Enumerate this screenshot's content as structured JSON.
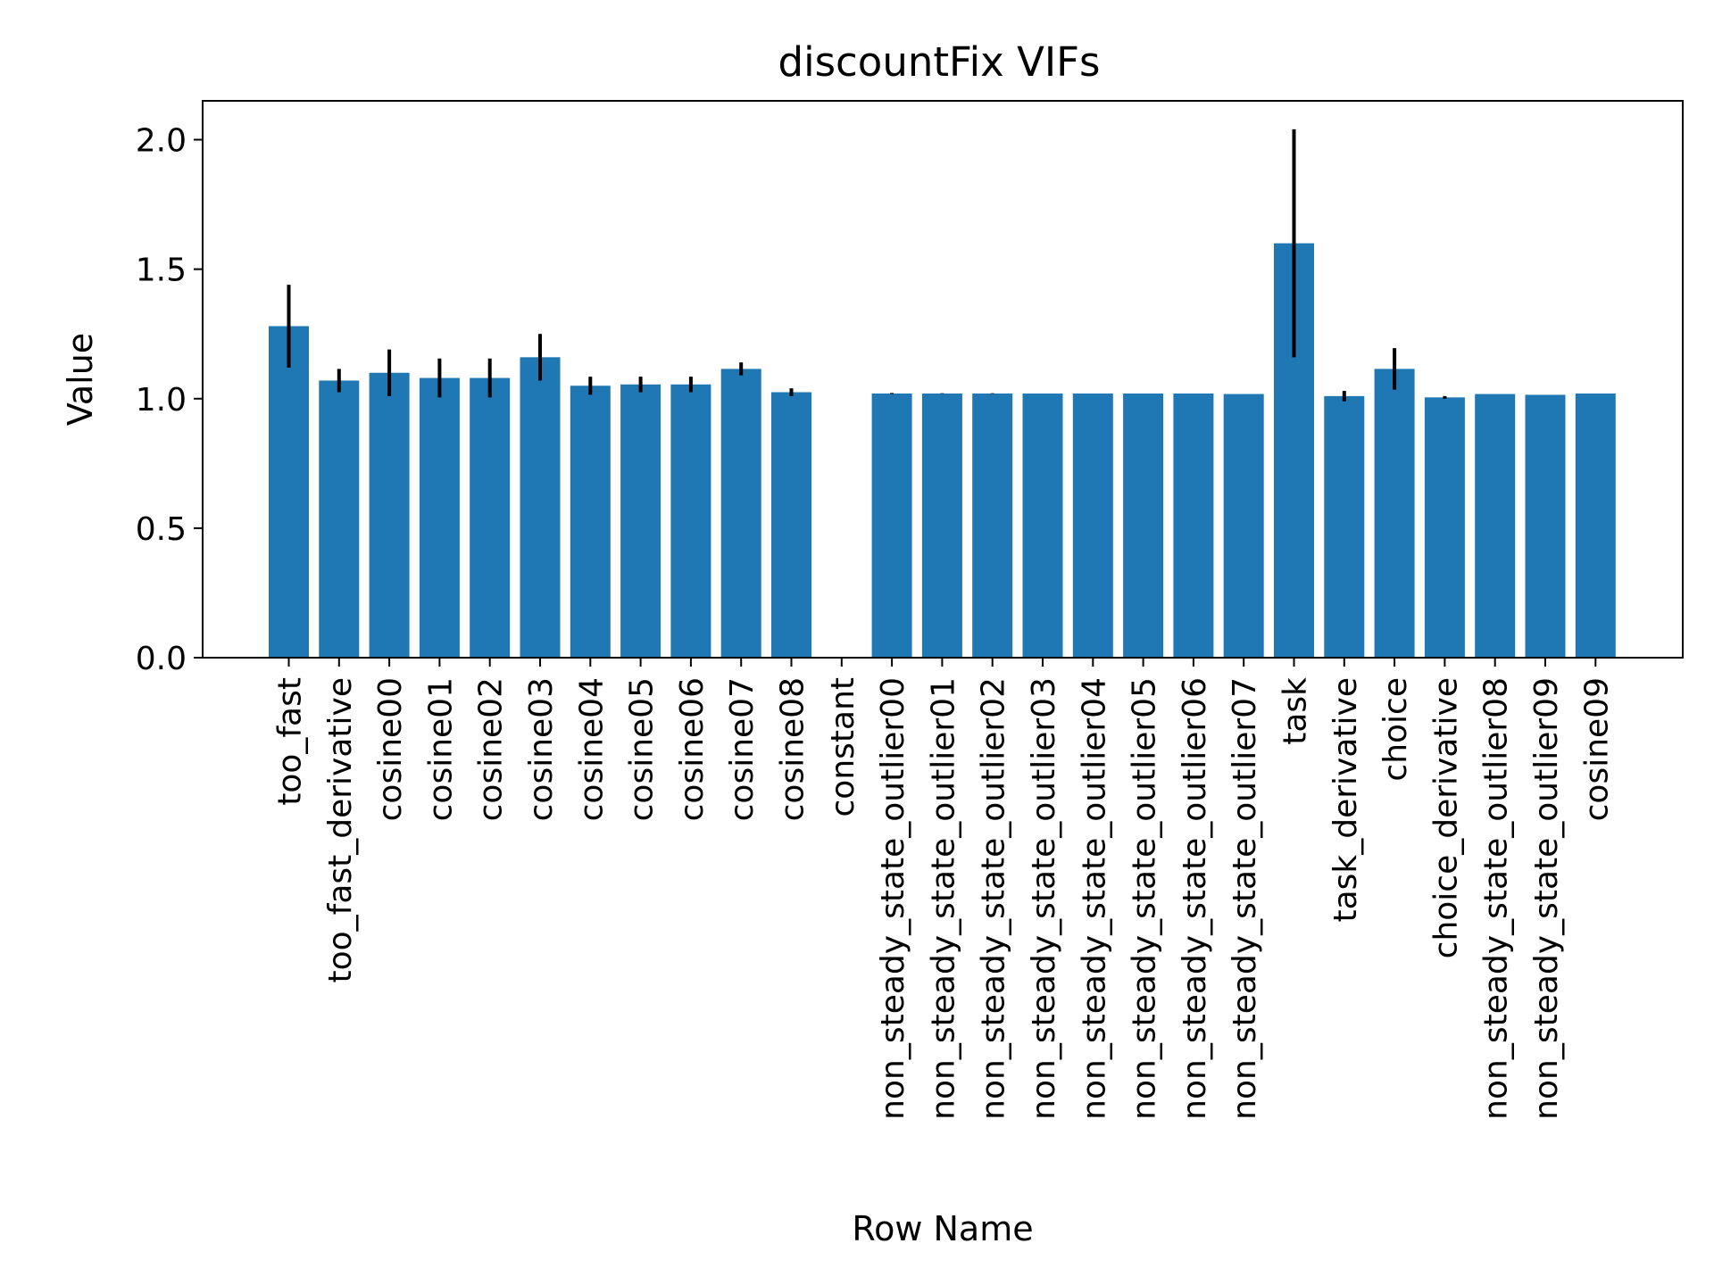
{
  "chart_data": {
    "type": "bar",
    "title": "discountFix VIFs",
    "xlabel": "Row Name",
    "ylabel": "Value",
    "ylim": [
      0,
      2.15
    ],
    "yticks": [
      0.0,
      0.5,
      1.0,
      1.5,
      2.0
    ],
    "ytick_labels": [
      "0.0",
      "0.5",
      "1.0",
      "1.5",
      "2.0"
    ],
    "bar_color": "#1f77b4",
    "error_color": "#000000",
    "grid": false,
    "legend": "none",
    "categories": [
      "too_fast",
      "too_fast_derivative",
      "cosine00",
      "cosine01",
      "cosine02",
      "cosine03",
      "cosine04",
      "cosine05",
      "cosine06",
      "cosine07",
      "cosine08",
      "constant",
      "non_steady_state_outlier00",
      "non_steady_state_outlier01",
      "non_steady_state_outlier02",
      "non_steady_state_outlier03",
      "non_steady_state_outlier04",
      "non_steady_state_outlier05",
      "non_steady_state_outlier06",
      "non_steady_state_outlier07",
      "task",
      "task_derivative",
      "choice",
      "choice_derivative",
      "non_steady_state_outlier08",
      "non_steady_state_outlier09",
      "cosine09"
    ],
    "values": [
      1.28,
      1.07,
      1.1,
      1.08,
      1.08,
      1.16,
      1.05,
      1.055,
      1.055,
      1.115,
      1.025,
      null,
      1.02,
      1.02,
      1.02,
      1.02,
      1.02,
      1.02,
      1.02,
      1.018,
      1.6,
      1.01,
      1.115,
      1.005,
      1.018,
      1.015,
      1.02
    ],
    "errors": [
      0.16,
      0.045,
      0.09,
      0.075,
      0.075,
      0.09,
      0.035,
      0.03,
      0.03,
      0.025,
      0.015,
      null,
      0.002,
      0.001,
      0.001,
      0.0,
      0.0,
      0.0,
      0.0,
      0.0,
      0.44,
      0.02,
      0.08,
      0.005,
      0.0,
      0.0,
      0.0
    ]
  }
}
